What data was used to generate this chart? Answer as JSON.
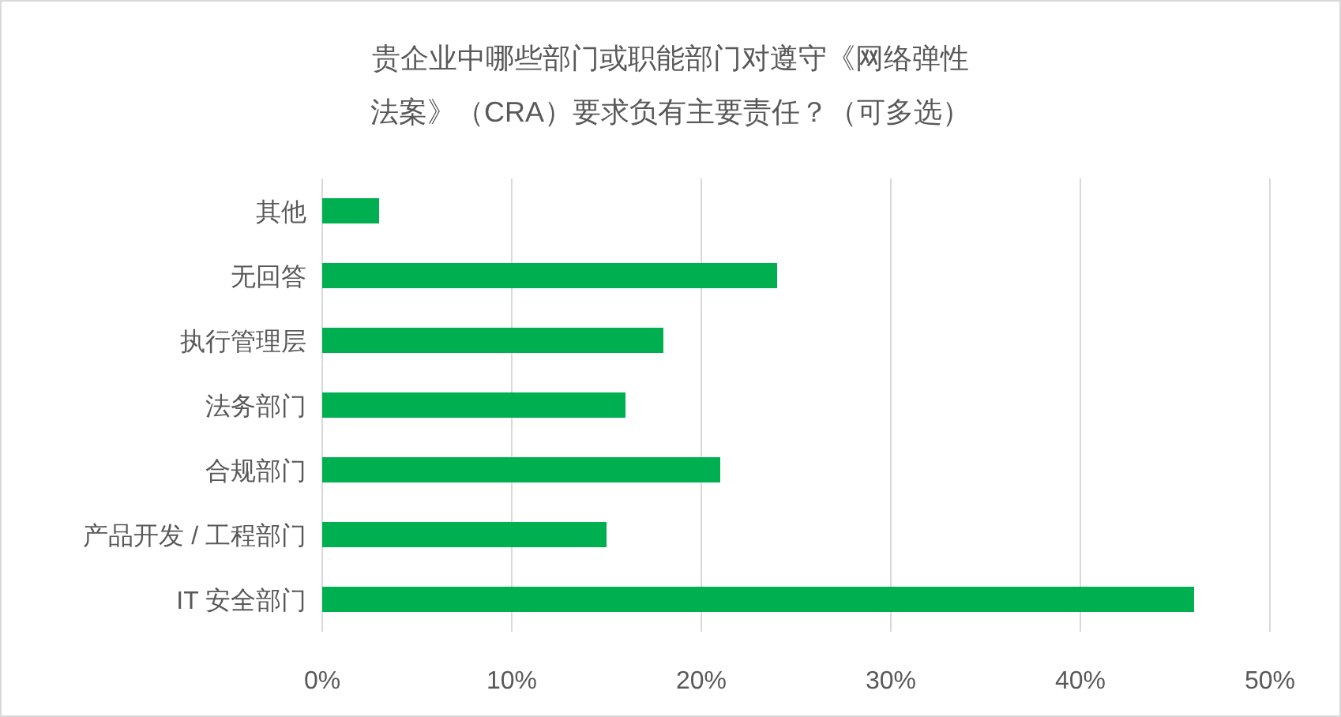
{
  "chart_data": {
    "type": "bar",
    "orientation": "horizontal",
    "title": "贵企业中哪些部门或职能部门对遵守《网络弹性法案》（CRA）要求负有主要责任？（可多选）",
    "categories": [
      "其他",
      "无回答",
      "执行管理层",
      "法务部门",
      "合规部门",
      "产品开发 / 工程部门",
      "IT 安全部门"
    ],
    "values": [
      3,
      24,
      18,
      16,
      21,
      15,
      46
    ],
    "color": "#00b050",
    "xlim": [
      0,
      50
    ],
    "xticks": [
      {
        "value": 0,
        "label": "0%"
      },
      {
        "value": 10,
        "label": "10%"
      },
      {
        "value": 20,
        "label": "20%"
      },
      {
        "value": 30,
        "label": "30%"
      },
      {
        "value": 40,
        "label": "40%"
      },
      {
        "value": 50,
        "label": "50%"
      }
    ],
    "grid": "x"
  }
}
